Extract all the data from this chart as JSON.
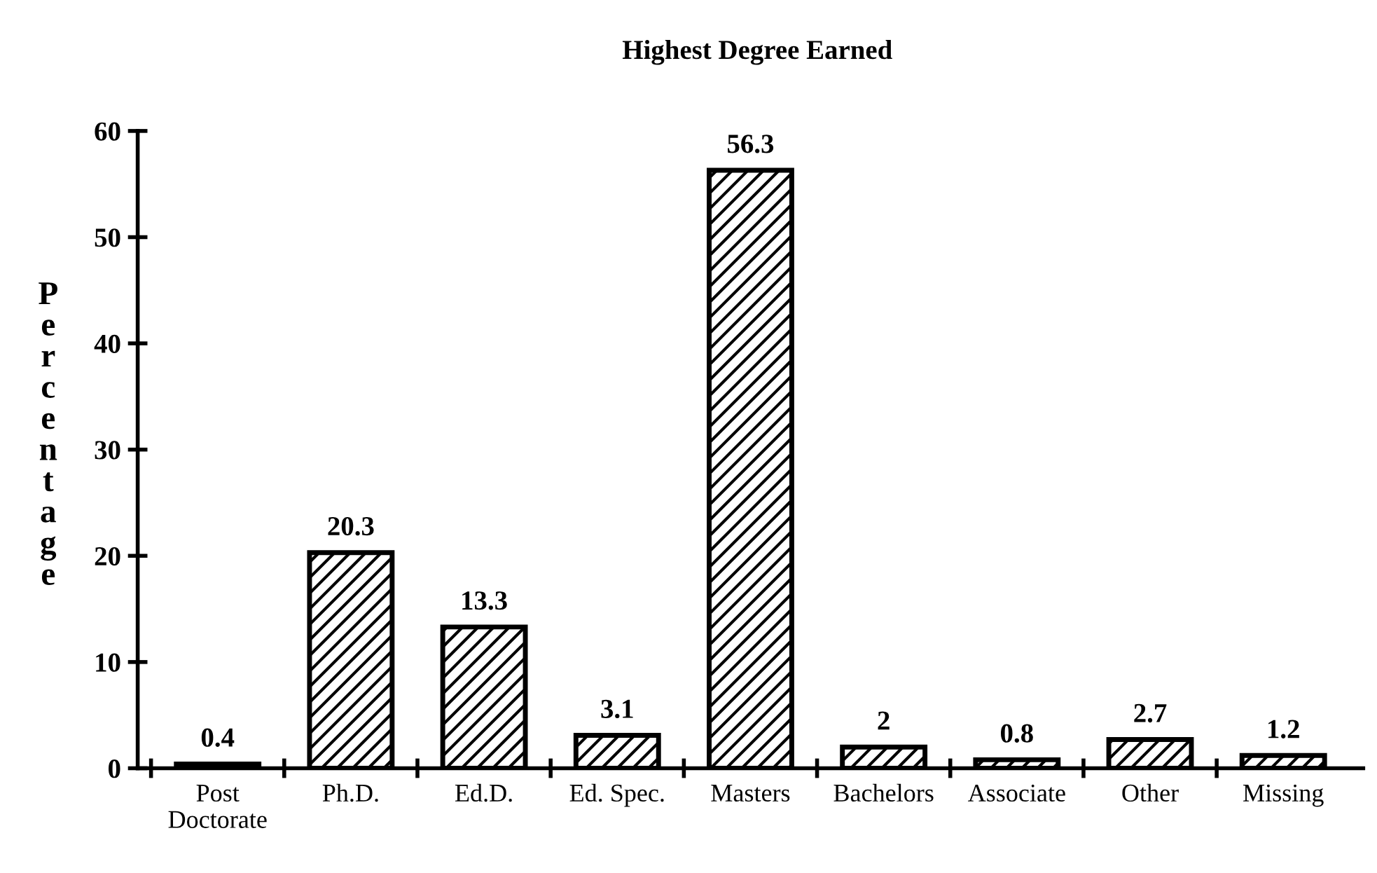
{
  "chart_data": {
    "type": "bar",
    "title": "Highest Degree Earned",
    "ylabel": "Percentage",
    "categories": [
      "Post\nDoctorate",
      "Ph.D.",
      "Ed.D.",
      "Ed. Spec.",
      "Masters",
      "Bachelors",
      "Associate",
      "Other",
      "Missing"
    ],
    "values": [
      0.4,
      20.3,
      13.3,
      3.1,
      56.3,
      2,
      0.8,
      2.7,
      1.2
    ],
    "color": "#000000",
    "ylim": [
      0,
      60
    ],
    "yticks": [
      0,
      10,
      20,
      30,
      40,
      50,
      60
    ],
    "data_labels": true,
    "grid": false,
    "legend": false
  }
}
